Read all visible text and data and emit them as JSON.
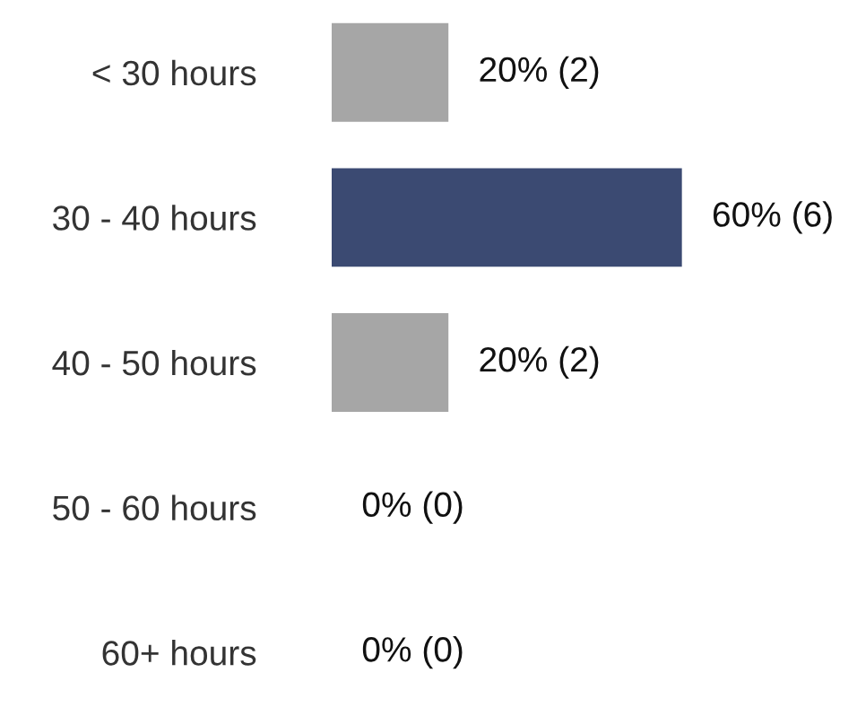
{
  "chart_data": {
    "type": "bar",
    "orientation": "horizontal",
    "categories": [
      "< 30 hours",
      "30 - 40 hours",
      "40 - 50 hours",
      "50 - 60 hours",
      "60+ hours"
    ],
    "values": [
      20,
      60,
      20,
      0,
      0
    ],
    "colors": [
      "#a6a6a6",
      "#3b4a72",
      "#a6a6a6",
      null,
      null
    ],
    "value_labels": [
      "20% (2)",
      "60% (6)",
      "20% (2)",
      "0% (0)",
      "0% (0)"
    ],
    "tick_labels": "y",
    "grid": false,
    "legend": false
  }
}
